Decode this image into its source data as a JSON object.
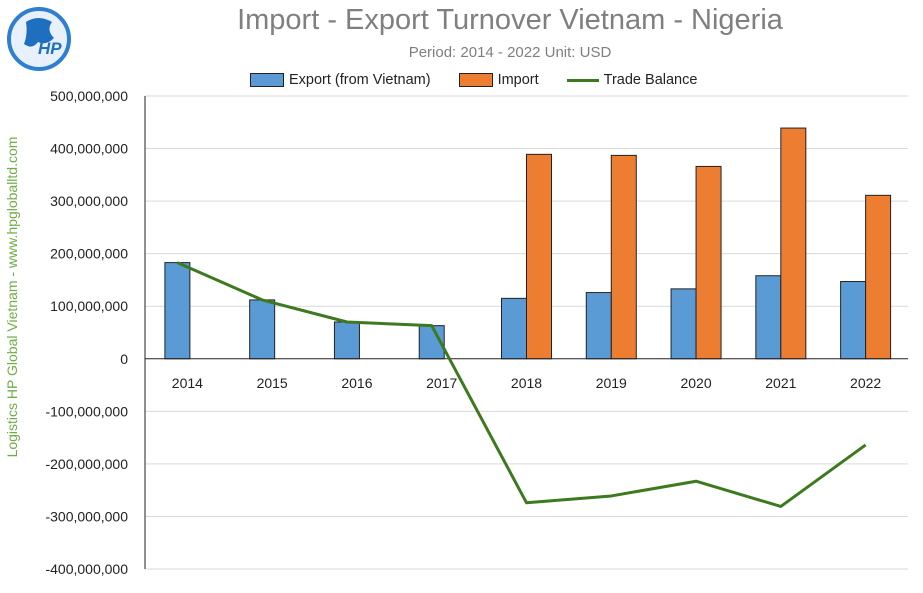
{
  "side_text": "Logistics HP Global Vietnam - www.hpgloballtd.com",
  "logo_text": "HP",
  "colors": {
    "export": "#5b9bd5",
    "import": "#ed7d31",
    "balance": "#3d7a1f",
    "title": "#7f7f7f",
    "side": "#70ad47"
  },
  "chart_data": {
    "type": "bar",
    "title": "Import - Export Turnover Vietnam - Nigeria",
    "subtitle": "Period: 2014 - 2022 Unit: USD",
    "categories": [
      "2014",
      "2015",
      "2016",
      "2017",
      "2018",
      "2019",
      "2020",
      "2021",
      "2022"
    ],
    "series": [
      {
        "name": "Export (from Vietnam)",
        "kind": "bar",
        "values": [
          183000000,
          112000000,
          70000000,
          63000000,
          115000000,
          126000000,
          133000000,
          158000000,
          147000000
        ]
      },
      {
        "name": "Import",
        "kind": "bar",
        "values": [
          0,
          0,
          0,
          0,
          389000000,
          387000000,
          366000000,
          439000000,
          311000000
        ]
      },
      {
        "name": "Trade Balance",
        "kind": "line",
        "values": [
          183000000,
          112000000,
          70000000,
          63000000,
          -274000000,
          -261000000,
          -233000000,
          -281000000,
          -164000000
        ]
      }
    ],
    "ylim": [
      -400000000,
      500000000
    ],
    "yticks": [
      500000000,
      400000000,
      300000000,
      200000000,
      100000000,
      0,
      -100000000,
      -200000000,
      -300000000,
      -400000000
    ],
    "ytick_labels": [
      "500,000,000",
      "400,000,000",
      "300,000,000",
      "200,000,000",
      "100,000,000",
      "0",
      "-100,000,000",
      "-200,000,000",
      "-300,000,000",
      "-400,000,000"
    ],
    "grid": true,
    "legend_position": "top"
  }
}
